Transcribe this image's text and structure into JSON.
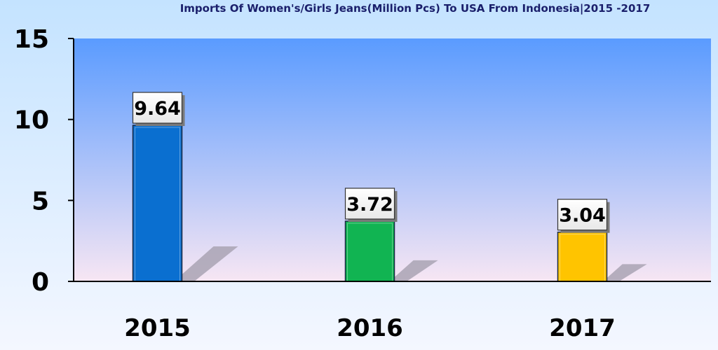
{
  "chart_data": {
    "type": "bar",
    "title": "Imports Of Women's/Girls Jeans(Million Pcs) To USA From Indonesia|2015 -2017",
    "categories": [
      "2015",
      "2016",
      "2017"
    ],
    "values": [
      9.64,
      3.72,
      3.04
    ],
    "data_labels": [
      "9.64",
      "3.72",
      "3.04"
    ],
    "bar_colors": [
      "#0a6fd0",
      "#11b452",
      "#ffc400"
    ],
    "ylim": [
      0,
      15
    ],
    "yticks": [
      0,
      5,
      10,
      15
    ],
    "ytick_labels": [
      "0",
      "5",
      "10",
      "15"
    ],
    "grid": false,
    "legend": "none"
  },
  "colors": {
    "plot_area_top": "#5a9bff",
    "plot_area_bottom": "#f7e6f3",
    "axis": "#000000",
    "bar_shadow": "#a9a3b3",
    "label_box_fill": "#ffffff"
  }
}
